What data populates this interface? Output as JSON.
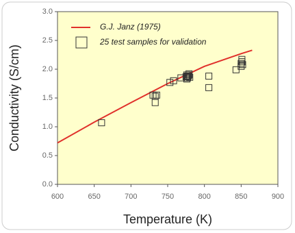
{
  "chart_data": {
    "type": "scatter",
    "xlabel": "Temperature (K)",
    "ylabel": "Conductivity (S/cm)",
    "xlim": [
      600,
      900
    ],
    "ylim": [
      0,
      3
    ],
    "xticks": [
      600,
      650,
      700,
      750,
      800,
      850,
      900
    ],
    "yticks": [
      {
        "value": 0,
        "label": "0.0"
      },
      0.5,
      {
        "value": 1,
        "label": "1.0"
      },
      1.5,
      {
        "value": 2,
        "label": "2.0"
      },
      2.5,
      {
        "value": 3,
        "label": "3.0"
      }
    ],
    "background": "#ffffcc",
    "series": [
      {
        "name": "G.J. Janz (1975)",
        "type": "line",
        "color": "#e0302b",
        "x": [
          600,
          650,
          700,
          750,
          800,
          850,
          865
        ],
        "values": [
          0.72,
          1.08,
          1.42,
          1.75,
          2.05,
          2.27,
          2.33
        ]
      },
      {
        "name": "25 test samples for validation",
        "type": "scatter",
        "color": "#333333",
        "x": [
          660,
          730,
          733,
          733,
          735,
          753,
          758,
          768,
          775,
          776,
          777,
          778,
          779,
          780,
          806,
          806,
          843,
          850,
          850,
          851,
          851,
          852,
          776,
          779,
          777
        ],
        "values": [
          1.07,
          1.55,
          1.53,
          1.42,
          1.55,
          1.77,
          1.8,
          1.85,
          1.87,
          1.9,
          1.85,
          1.88,
          1.9,
          1.86,
          1.88,
          1.68,
          1.99,
          2.05,
          2.1,
          2.13,
          2.17,
          2.08,
          1.83,
          1.92,
          1.88
        ]
      }
    ]
  }
}
